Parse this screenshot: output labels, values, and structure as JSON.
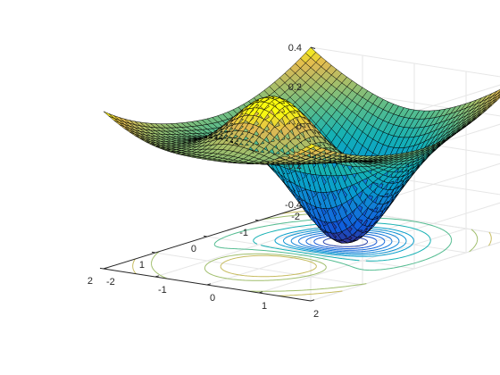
{
  "chart_data": {
    "type": "surface",
    "title": "",
    "xlabel": "",
    "ylabel": "",
    "zlabel": "",
    "function": "z = x * exp(-x^2 - y^2) + (x^2 + y^2) / 20",
    "xlim": [
      -2,
      2
    ],
    "ylim": [
      -2,
      2
    ],
    "zlim": [
      -0.4,
      0.4
    ],
    "x_ticks": [
      "-2",
      "-1",
      "0",
      "1",
      "2"
    ],
    "y_ticks": [
      "-2",
      "-1",
      "0",
      "1",
      "2"
    ],
    "z_ticks": [
      "-0.4",
      "-0.2",
      "0",
      "0.2",
      "0.4"
    ],
    "grid": true,
    "colormap": "parula",
    "mesh_edge_color": "#000000",
    "contour_on_floor": true,
    "contour_levels": [
      -0.35,
      -0.3,
      -0.25,
      -0.2,
      -0.15,
      -0.1,
      -0.05,
      0.05,
      0.15,
      0.25,
      0.3
    ],
    "axis_color": "#262626",
    "grid_color": "#e6e6e6"
  }
}
